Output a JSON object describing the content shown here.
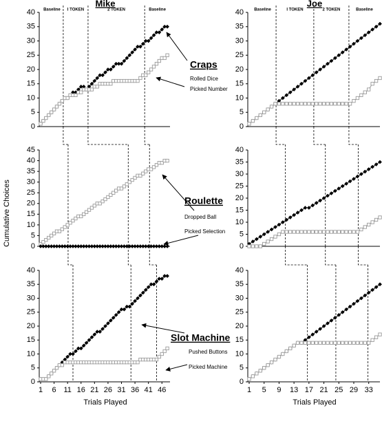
{
  "chart_data": [
    {
      "type": "line",
      "title": "Mike",
      "label": "Craps",
      "phase_labels": [
        "Baseline",
        "I TOKEN",
        "2 TOKEN",
        "Baseline"
      ],
      "phase_lines": [
        9.4,
        18.6,
        39.6
      ],
      "x": [
        1,
        2,
        3,
        4,
        5,
        6,
        7,
        8,
        9,
        10,
        11,
        12,
        13,
        14,
        15,
        16,
        17,
        18,
        19,
        20,
        21,
        22,
        23,
        24,
        25,
        26,
        27,
        28,
        29,
        30,
        31,
        32,
        33,
        34,
        35,
        36,
        37,
        38,
        39,
        40,
        41,
        42,
        43,
        44,
        45,
        46,
        47,
        48
      ],
      "xlim": [
        1,
        49
      ],
      "ylim": [
        0,
        40
      ],
      "yticks": [
        0,
        5,
        10,
        15,
        20,
        25,
        30,
        35,
        40
      ],
      "series": [
        {
          "name": "Rolled Dice",
          "color": "#000000",
          "marker": "diamond",
          "values": [
            1,
            2,
            3,
            4,
            5,
            6,
            7,
            8,
            9,
            10,
            10,
            11,
            12,
            12,
            13,
            14,
            14,
            13,
            14,
            15,
            16,
            17,
            18,
            18,
            19,
            20,
            20,
            21,
            22,
            22,
            22,
            23,
            24,
            25,
            26,
            27,
            28,
            28,
            29,
            30,
            30,
            31,
            32,
            33,
            33,
            34,
            35,
            35
          ]
        },
        {
          "name": "Picked Number",
          "color": "#999999",
          "marker": "square",
          "values": [
            1,
            2,
            3,
            4,
            5,
            6,
            7,
            8,
            9,
            10,
            10,
            11,
            11,
            11,
            12,
            12,
            13,
            13,
            13,
            13,
            14,
            14,
            15,
            15,
            15,
            15,
            15,
            16,
            16,
            16,
            16,
            16,
            16,
            16,
            16,
            16,
            16,
            17,
            18,
            18,
            19,
            20,
            21,
            22,
            23,
            24,
            24,
            25
          ]
        }
      ]
    },
    {
      "type": "line",
      "title": "Joe",
      "phase_labels": [
        "Baseline",
        "I TOKEN",
        "2 TOKEN",
        "Baseline"
      ],
      "phase_lines": [
        8.2,
        18.3,
        27.7
      ],
      "x": [
        1,
        2,
        3,
        4,
        5,
        6,
        7,
        8,
        9,
        10,
        11,
        12,
        13,
        14,
        15,
        16,
        17,
        18,
        19,
        20,
        21,
        22,
        23,
        24,
        25,
        26,
        27,
        28,
        29,
        30,
        31,
        32,
        33,
        34,
        35,
        36
      ],
      "xlim": [
        1,
        36
      ],
      "ylim": [
        0,
        40
      ],
      "yticks": [
        0,
        5,
        10,
        15,
        20,
        25,
        30,
        35,
        40
      ],
      "series": [
        {
          "color": "#000000",
          "marker": "diamond",
          "values": [
            1,
            2,
            3,
            4,
            5,
            6,
            7,
            8,
            9,
            10,
            11,
            12,
            13,
            14,
            15,
            16,
            17,
            18,
            19,
            20,
            21,
            22,
            23,
            24,
            25,
            26,
            27,
            28,
            29,
            30,
            31,
            32,
            33,
            34,
            35,
            36
          ]
        },
        {
          "color": "#999999",
          "marker": "square",
          "values": [
            1,
            2,
            3,
            4,
            5,
            6,
            7,
            8,
            8,
            8,
            8,
            8,
            8,
            8,
            8,
            8,
            8,
            8,
            8,
            8,
            8,
            8,
            8,
            8,
            8,
            8,
            8,
            8,
            9,
            10,
            11,
            12,
            13,
            15,
            16,
            17
          ]
        }
      ]
    },
    {
      "type": "line",
      "label": "Roulette",
      "ylabel": "Cumulative Choices",
      "phase_lines": [
        11.2,
        33.5,
        41.4
      ],
      "x": [
        1,
        2,
        3,
        4,
        5,
        6,
        7,
        8,
        9,
        10,
        11,
        12,
        13,
        14,
        15,
        16,
        17,
        18,
        19,
        20,
        21,
        22,
        23,
        24,
        25,
        26,
        27,
        28,
        29,
        30,
        31,
        32,
        33,
        34,
        35,
        36,
        37,
        38,
        39,
        40,
        41,
        42,
        43,
        44,
        45,
        46,
        47,
        48
      ],
      "xlim": [
        1,
        49
      ],
      "ylim": [
        0,
        45
      ],
      "yticks": [
        0,
        5,
        10,
        15,
        20,
        25,
        30,
        35,
        40,
        45
      ],
      "series": [
        {
          "name": "Dropped Ball",
          "color": "#999999",
          "marker": "square",
          "values": [
            1,
            2,
            3,
            4,
            5,
            6,
            7,
            7,
            8,
            9,
            10,
            11,
            12,
            13,
            14,
            14,
            15,
            16,
            17,
            18,
            19,
            20,
            20,
            21,
            22,
            23,
            24,
            25,
            26,
            27,
            27,
            28,
            29,
            30,
            31,
            32,
            33,
            33,
            34,
            35,
            36,
            36,
            37,
            38,
            39,
            39,
            40,
            40
          ]
        },
        {
          "name": "Picked Selection",
          "color": "#000000",
          "marker": "diamond",
          "values": [
            0,
            0,
            0,
            0,
            0,
            0,
            0,
            0,
            0,
            0,
            0,
            0,
            0,
            0,
            0,
            0,
            0,
            0,
            0,
            0,
            0,
            0,
            0,
            0,
            0,
            0,
            0,
            0,
            0,
            0,
            0,
            0,
            0,
            0,
            0,
            0,
            0,
            0,
            0,
            0,
            0,
            0,
            0,
            0,
            0,
            0,
            0,
            0
          ]
        }
      ]
    },
    {
      "type": "line",
      "phase_lines": [
        10.7,
        21.4,
        30.2
      ],
      "x": [
        1,
        2,
        3,
        4,
        5,
        6,
        7,
        8,
        9,
        10,
        11,
        12,
        13,
        14,
        15,
        16,
        17,
        18,
        19,
        20,
        21,
        22,
        23,
        24,
        25,
        26,
        27,
        28,
        29,
        30,
        31,
        32,
        33,
        34,
        35,
        36
      ],
      "xlim": [
        1,
        36
      ],
      "ylim": [
        0,
        40
      ],
      "yticks": [
        0,
        5,
        10,
        15,
        20,
        25,
        30,
        35,
        40
      ],
      "series": [
        {
          "color": "#000000",
          "marker": "diamond",
          "values": [
            1,
            2,
            3,
            4,
            5,
            6,
            7,
            8,
            9,
            10,
            11,
            12,
            13,
            14,
            15,
            16,
            16,
            17,
            18,
            19,
            20,
            21,
            22,
            23,
            24,
            25,
            26,
            27,
            28,
            29,
            30,
            31,
            32,
            33,
            34,
            35
          ]
        },
        {
          "color": "#999999",
          "marker": "square",
          "values": [
            0,
            0,
            0,
            0,
            1,
            2,
            3,
            4,
            5,
            6,
            6,
            6,
            6,
            6,
            6,
            6,
            6,
            6,
            6,
            6,
            6,
            6,
            6,
            6,
            6,
            6,
            6,
            6,
            6,
            6,
            7,
            8,
            9,
            10,
            11,
            12
          ]
        }
      ]
    },
    {
      "type": "line",
      "label": "Slot Machine",
      "xlabel": "Trials Played",
      "phase_lines": [
        13.0,
        34.5,
        44.0
      ],
      "x": [
        1,
        2,
        3,
        4,
        5,
        6,
        7,
        8,
        9,
        10,
        11,
        12,
        13,
        14,
        15,
        16,
        17,
        18,
        19,
        20,
        21,
        22,
        23,
        24,
        25,
        26,
        27,
        28,
        29,
        30,
        31,
        32,
        33,
        34,
        35,
        36,
        37,
        38,
        39,
        40,
        41,
        42,
        43,
        44,
        45,
        46,
        47,
        48
      ],
      "xlim": [
        1,
        49
      ],
      "xticks": [
        1,
        6,
        11,
        16,
        21,
        26,
        31,
        36,
        41,
        46
      ],
      "ylim": [
        0,
        40
      ],
      "yticks": [
        0,
        5,
        10,
        15,
        20,
        25,
        30,
        35,
        40
      ],
      "series": [
        {
          "name": "Pushed Buttons",
          "color": "#000000",
          "marker": "diamond",
          "values": [
            1,
            1,
            1,
            2,
            3,
            4,
            5,
            6,
            7,
            8,
            9,
            10,
            10,
            11,
            12,
            12,
            13,
            14,
            15,
            16,
            17,
            18,
            18,
            19,
            20,
            21,
            22,
            23,
            24,
            25,
            26,
            26,
            27,
            27,
            28,
            29,
            30,
            31,
            32,
            33,
            34,
            35,
            35,
            36,
            37,
            37,
            38,
            38
          ]
        },
        {
          "name": "Picked Machine",
          "color": "#999999",
          "marker": "square",
          "values": [
            1,
            1,
            1,
            2,
            3,
            4,
            5,
            6,
            6,
            7,
            7,
            7,
            7,
            7,
            7,
            7,
            7,
            7,
            7,
            7,
            7,
            7,
            7,
            7,
            7,
            7,
            7,
            7,
            7,
            7,
            7,
            7,
            7,
            7,
            7,
            7,
            7,
            8,
            8,
            8,
            8,
            8,
            8,
            8,
            9,
            10,
            11,
            12
          ]
        }
      ]
    },
    {
      "type": "line",
      "xlabel": "Trials Played",
      "phase_lines": [
        16.6,
        24.2,
        32.8
      ],
      "x": [
        1,
        2,
        3,
        4,
        5,
        6,
        7,
        8,
        9,
        10,
        11,
        12,
        13,
        14,
        15,
        16,
        17,
        18,
        19,
        20,
        21,
        22,
        23,
        24,
        25,
        26,
        27,
        28,
        29,
        30,
        31,
        32,
        33,
        34,
        35,
        36
      ],
      "xlim": [
        1,
        36
      ],
      "xticks": [
        1,
        5,
        9,
        13,
        17,
        21,
        25,
        29,
        33
      ],
      "ylim": [
        0,
        40
      ],
      "yticks": [
        0,
        5,
        10,
        15,
        20,
        25,
        30,
        35,
        40
      ],
      "series": [
        {
          "color": "#000000",
          "marker": "diamond",
          "values": [
            1,
            2,
            3,
            4,
            5,
            6,
            7,
            8,
            9,
            10,
            11,
            12,
            13,
            14,
            14,
            15,
            16,
            17,
            18,
            19,
            20,
            21,
            22,
            23,
            24,
            25,
            26,
            27,
            28,
            29,
            30,
            31,
            32,
            33,
            34,
            35
          ]
        },
        {
          "color": "#999999",
          "marker": "square",
          "values": [
            1,
            2,
            3,
            4,
            5,
            6,
            7,
            8,
            9,
            10,
            11,
            12,
            13,
            14,
            14,
            14,
            14,
            14,
            14,
            14,
            14,
            14,
            14,
            14,
            14,
            14,
            14,
            14,
            14,
            14,
            14,
            14,
            14,
            15,
            16,
            17
          ]
        }
      ]
    }
  ]
}
